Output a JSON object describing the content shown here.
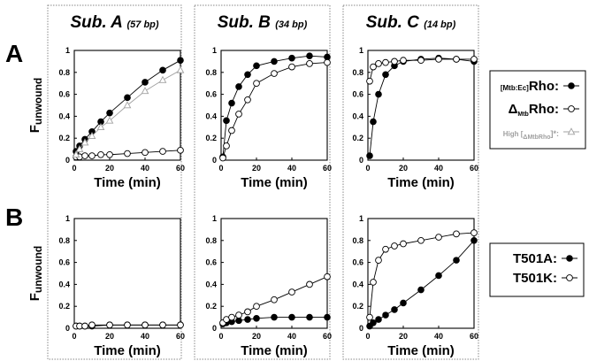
{
  "figure": {
    "row_labels": [
      "A",
      "B"
    ],
    "column_titles": [
      {
        "name": "Sub. A",
        "len": "(57 bp)"
      },
      {
        "name": "Sub. B",
        "len": "(34 bp)"
      },
      {
        "name": "Sub. C",
        "len": "(14 bp)"
      }
    ],
    "ylabel_main": "F",
    "ylabel_sub": "unwound",
    "xlabel": "Time (min)",
    "legend_A": {
      "items": [
        {
          "prefix": "[Mtb:Ec]",
          "main": "Rho:",
          "marker": "filled"
        },
        {
          "prefix": "Δ",
          "sub": "Mtb",
          "main": "Rho:",
          "marker": "open"
        },
        {
          "prefix": "High [",
          "sub": "ΔMtbRho",
          "main": "]*:",
          "marker": "triangle"
        }
      ]
    },
    "legend_B": {
      "items": [
        {
          "main": "T501A:",
          "marker": "filled"
        },
        {
          "main": "T501K:",
          "marker": "open"
        }
      ]
    },
    "colors": {
      "black": "#000000",
      "gray": "#a0a0a0",
      "frame": "#888888"
    }
  },
  "chart_data": [
    {
      "type": "scatter",
      "panel": "A / Sub. A",
      "xlabel": "Time (min)",
      "ylabel": "Funwound",
      "xlim": [
        0,
        60
      ],
      "ylim": [
        0,
        1
      ],
      "series": [
        {
          "name": "[Mtb:Ec]Rho",
          "marker": "filled",
          "x": [
            1,
            3,
            6,
            10,
            15,
            20,
            30,
            40,
            50,
            60
          ],
          "y": [
            0.08,
            0.13,
            0.19,
            0.26,
            0.35,
            0.43,
            0.57,
            0.71,
            0.82,
            0.91
          ]
        },
        {
          "name": "ΔMtbRho",
          "marker": "open",
          "x": [
            1,
            3,
            6,
            10,
            15,
            20,
            30,
            40,
            50,
            60
          ],
          "y": [
            0.03,
            0.03,
            0.04,
            0.04,
            0.05,
            0.05,
            0.06,
            0.07,
            0.08,
            0.09
          ]
        },
        {
          "name": "High [ΔMtbRho]*",
          "marker": "triangle",
          "x": [
            1,
            3,
            6,
            10,
            15,
            20,
            30,
            40,
            50,
            60
          ],
          "y": [
            0.05,
            0.1,
            0.16,
            0.22,
            0.3,
            0.36,
            0.5,
            0.63,
            0.73,
            0.82
          ]
        }
      ]
    },
    {
      "type": "scatter",
      "panel": "A / Sub. B",
      "xlabel": "Time (min)",
      "ylabel": "Funwound",
      "xlim": [
        0,
        60
      ],
      "ylim": [
        0,
        1
      ],
      "series": [
        {
          "name": "[Mtb:Ec]Rho",
          "marker": "filled",
          "x": [
            1,
            3,
            6,
            10,
            15,
            20,
            30,
            40,
            50,
            60
          ],
          "y": [
            0.03,
            0.36,
            0.52,
            0.67,
            0.78,
            0.86,
            0.9,
            0.93,
            0.95,
            0.94
          ]
        },
        {
          "name": "ΔMtbRho",
          "marker": "open",
          "x": [
            1,
            3,
            6,
            10,
            15,
            20,
            30,
            40,
            50,
            60
          ],
          "y": [
            0.02,
            0.13,
            0.27,
            0.42,
            0.55,
            0.7,
            0.79,
            0.85,
            0.88,
            0.89
          ]
        }
      ]
    },
    {
      "type": "scatter",
      "panel": "A / Sub. C",
      "xlabel": "Time (min)",
      "ylabel": "Funwound",
      "xlim": [
        0,
        60
      ],
      "ylim": [
        0,
        1
      ],
      "series": [
        {
          "name": "[Mtb:Ec]Rho",
          "marker": "filled",
          "x": [
            1,
            3,
            6,
            10,
            15,
            20,
            30,
            40,
            50,
            60
          ],
          "y": [
            0.04,
            0.35,
            0.6,
            0.78,
            0.86,
            0.9,
            0.92,
            0.93,
            0.92,
            0.9
          ]
        },
        {
          "name": "ΔMtbRho",
          "marker": "open",
          "x": [
            1,
            3,
            6,
            10,
            15,
            20,
            30,
            40,
            50,
            60
          ],
          "y": [
            0.72,
            0.85,
            0.88,
            0.89,
            0.9,
            0.91,
            0.91,
            0.92,
            0.92,
            0.92
          ]
        }
      ]
    },
    {
      "type": "scatter",
      "panel": "B / Sub. A",
      "xlabel": "Time (min)",
      "ylabel": "Funwound",
      "xlim": [
        0,
        60
      ],
      "ylim": [
        0,
        1
      ],
      "series": [
        {
          "name": "T501A",
          "marker": "filled",
          "x": [
            1,
            3,
            6,
            10,
            20,
            30,
            40,
            50,
            60
          ],
          "y": [
            0.02,
            0.02,
            0.02,
            0.02,
            0.03,
            0.03,
            0.03,
            0.03,
            0.03
          ]
        },
        {
          "name": "T501K",
          "marker": "open",
          "x": [
            1,
            3,
            6,
            10,
            20,
            30,
            40,
            50,
            60
          ],
          "y": [
            0.02,
            0.02,
            0.02,
            0.03,
            0.03,
            0.03,
            0.03,
            0.03,
            0.03
          ]
        }
      ]
    },
    {
      "type": "scatter",
      "panel": "B / Sub. B",
      "xlabel": "Time (min)",
      "ylabel": "Funwound",
      "xlim": [
        0,
        60
      ],
      "ylim": [
        0,
        1
      ],
      "series": [
        {
          "name": "T501A",
          "marker": "filled",
          "x": [
            1,
            3,
            6,
            10,
            15,
            20,
            30,
            40,
            50,
            60
          ],
          "y": [
            0.04,
            0.05,
            0.06,
            0.07,
            0.08,
            0.09,
            0.1,
            0.1,
            0.1,
            0.1
          ]
        },
        {
          "name": "T501K",
          "marker": "open",
          "x": [
            1,
            3,
            6,
            10,
            15,
            20,
            30,
            40,
            50,
            60
          ],
          "y": [
            0.05,
            0.08,
            0.1,
            0.12,
            0.15,
            0.2,
            0.26,
            0.33,
            0.4,
            0.47
          ]
        }
      ]
    },
    {
      "type": "scatter",
      "panel": "B / Sub. C",
      "xlabel": "Time (min)",
      "ylabel": "Funwound",
      "xlim": [
        0,
        60
      ],
      "ylim": [
        0,
        1
      ],
      "series": [
        {
          "name": "T501A",
          "marker": "filled",
          "x": [
            1,
            3,
            6,
            10,
            15,
            20,
            30,
            40,
            50,
            60
          ],
          "y": [
            0.02,
            0.05,
            0.08,
            0.12,
            0.17,
            0.23,
            0.35,
            0.48,
            0.62,
            0.8
          ]
        },
        {
          "name": "T501K",
          "marker": "open",
          "x": [
            1,
            3,
            6,
            10,
            15,
            20,
            30,
            40,
            50,
            60
          ],
          "y": [
            0.1,
            0.42,
            0.62,
            0.72,
            0.75,
            0.77,
            0.8,
            0.83,
            0.86,
            0.87
          ]
        }
      ]
    }
  ]
}
